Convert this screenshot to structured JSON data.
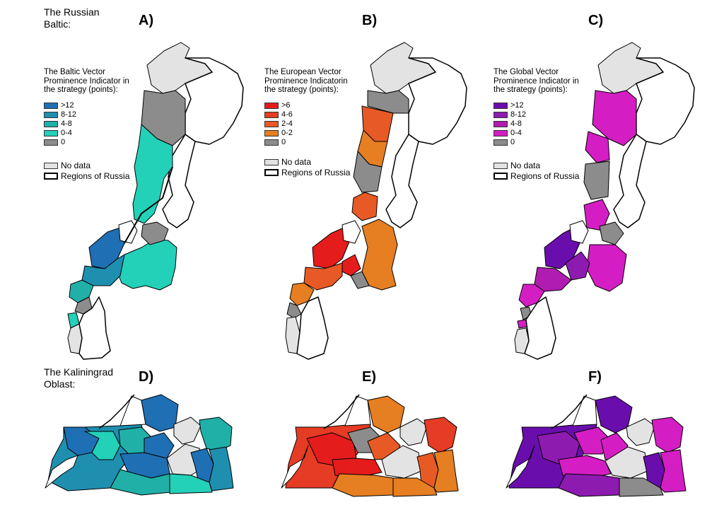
{
  "sections": {
    "russian_baltic": "The Russian Baltic:",
    "kaliningrad": "The Kaliningrad Oblast:"
  },
  "panels": {
    "A": "A)",
    "B": "B)",
    "C": "C)",
    "D": "D)",
    "E": "E)",
    "F": "F)"
  },
  "legends": {
    "baltic": {
      "title": "The Baltic Vector Prominence Indicator in the strategy (points):",
      "items": [
        {
          "label": ">12",
          "color": "#1f6fb4"
        },
        {
          "label": "8-12",
          "color": "#1f8fb0"
        },
        {
          "label": "4-8",
          "color": "#20b0a8"
        },
        {
          "label": "0-4",
          "color": "#23d0b8"
        },
        {
          "label": "0",
          "color": "#8c8c8c"
        }
      ]
    },
    "european": {
      "title": "The European Vector Prominence Indicatorin the strategy (points):",
      "items": [
        {
          "label": ">6",
          "color": "#e51c1c"
        },
        {
          "label": "4-6",
          "color": "#e63b24"
        },
        {
          "label": "2-4",
          "color": "#e85a25"
        },
        {
          "label": "0-2",
          "color": "#e67e22"
        },
        {
          "label": "0",
          "color": "#8c8c8c"
        }
      ]
    },
    "global": {
      "title": "The Global Vector Prominence Indicator in the strategy (points):",
      "items": [
        {
          "label": ">12",
          "color": "#6a0dad"
        },
        {
          "label": "8-12",
          "color": "#8e1bb0"
        },
        {
          "label": "4-8",
          "color": "#b01cb0"
        },
        {
          "label": "0-4",
          "color": "#d41ec4"
        },
        {
          "label": "0",
          "color": "#8c8c8c"
        }
      ]
    },
    "no_data": "No data",
    "regions": "Regions of Russia",
    "no_data_color": "#e3e3e3"
  }
}
